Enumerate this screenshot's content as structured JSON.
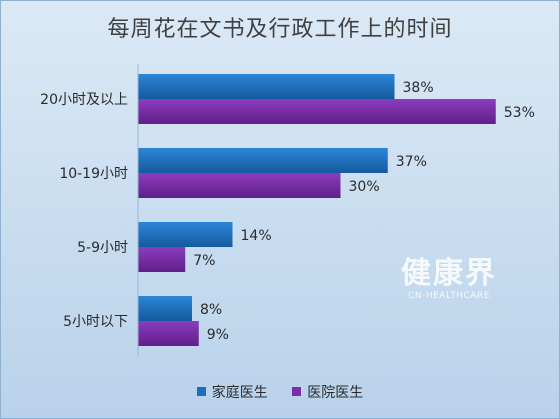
{
  "chart_data": {
    "type": "bar",
    "orientation": "horizontal",
    "title": "每周花在文书及行政工作上的时间",
    "categories": [
      "20小时及以上",
      "10-19小时",
      "5-9小时",
      "5小时以下"
    ],
    "series": [
      {
        "name": "家庭医生",
        "values": [
          38,
          37,
          14,
          8
        ],
        "color": "#1f6fc1"
      },
      {
        "name": "医院医生",
        "values": [
          53,
          30,
          7,
          9
        ],
        "color": "#7b2fa8"
      }
    ],
    "value_suffix": "%",
    "xlim": [
      0,
      60
    ],
    "grid": false,
    "legend_position": "bottom"
  },
  "watermark": {
    "main": "健康界",
    "sub": "CN-HEALTHCARE"
  }
}
